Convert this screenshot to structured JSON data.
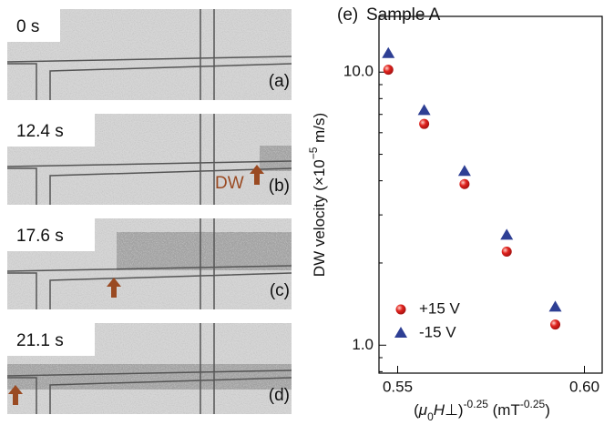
{
  "panels": [
    {
      "time": "0 s",
      "label": "(a)"
    },
    {
      "time": "12.4 s",
      "label": "(b)"
    },
    {
      "time": "17.6 s",
      "label": "(c)"
    },
    {
      "time": "21.1 s",
      "label": "(d)"
    }
  ],
  "dw_label": "DW",
  "chart_data": {
    "type": "scatter",
    "panel_label": "(e)",
    "title": "Sample A",
    "ylabel": [
      "DW velocity (×10",
      "−5",
      " m/s)"
    ],
    "xlabel": [
      "(",
      "μ",
      "0",
      "H",
      "⊥",
      ")",
      "-0.25",
      " (mT",
      "-0.25",
      ")"
    ],
    "x": [
      0.5475,
      0.5571,
      0.5679,
      0.5792,
      0.5922
    ],
    "series": [
      {
        "name": "+15 V",
        "color": "#e0231e",
        "marker": "circle",
        "values": [
          10.2,
          6.46,
          3.89,
          2.2,
          1.19
        ]
      },
      {
        "name": "-15 V",
        "color": "#2e3f94",
        "marker": "triangle",
        "values": [
          11.7,
          7.24,
          4.33,
          2.53,
          1.38
        ]
      }
    ],
    "xlim": [
      0.545,
      0.605
    ],
    "xticks": [
      0.55,
      {
        "value": 0.6,
        "label": "0.60"
      }
    ],
    "ylim": [
      0.79,
      16
    ],
    "yticks": [
      {
        "value": 1,
        "label": "1.0"
      },
      {
        "value": 10,
        "label": "10.0"
      }
    ],
    "log_y": true,
    "grid": false,
    "legend": "lower left"
  }
}
